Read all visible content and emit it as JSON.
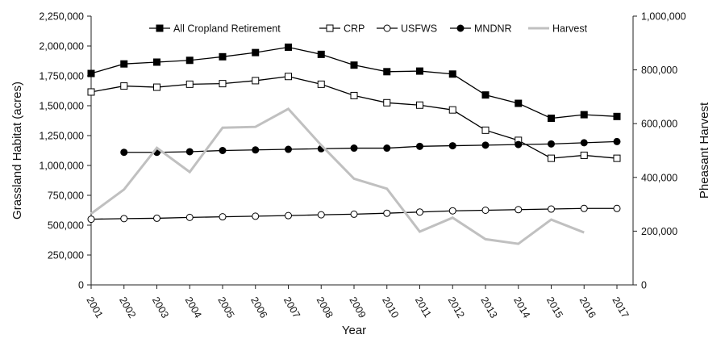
{
  "chart_data": {
    "type": "line",
    "title": "",
    "xlabel": "Year",
    "ylabel": "Grassland Habitat (acres)",
    "y2label": "Pheasant Harvest",
    "x": [
      "2001",
      "2002",
      "2003",
      "2004",
      "2005",
      "2006",
      "2007",
      "2008",
      "2009",
      "2010",
      "2011",
      "2012",
      "2013",
      "2014",
      "2015",
      "2016",
      "2017"
    ],
    "ylim": [
      0,
      2250000
    ],
    "y2lim": [
      0,
      1000000
    ],
    "y_ticks": [
      "0",
      "250,000",
      "500,000",
      "750,000",
      "1,000,000",
      "1,250,000",
      "1,500,000",
      "1,750,000",
      "2,000,000",
      "2,250,000"
    ],
    "y2_ticks": [
      "0",
      "200,000",
      "400,000",
      "600,000",
      "800,000",
      "1,000,000"
    ],
    "grid": false,
    "legend_position": "top",
    "series": [
      {
        "name": "All Cropland Retirement",
        "axis": "left",
        "marker": "filled-square",
        "color": "#000000",
        "values": [
          1770000,
          1850000,
          1865000,
          1880000,
          1910000,
          1945000,
          1990000,
          1930000,
          1840000,
          1785000,
          1790000,
          1765000,
          1590000,
          1520000,
          1395000,
          1425000,
          1410000
        ]
      },
      {
        "name": "CRP",
        "axis": "left",
        "marker": "open-square",
        "color": "#000000",
        "values": [
          1615000,
          1665000,
          1655000,
          1680000,
          1685000,
          1710000,
          1745000,
          1680000,
          1585000,
          1525000,
          1505000,
          1465000,
          1295000,
          1210000,
          1060000,
          1085000,
          1060000
        ]
      },
      {
        "name": "USFWS",
        "axis": "left",
        "marker": "open-circle",
        "color": "#000000",
        "values": [
          550000,
          555000,
          558000,
          565000,
          570000,
          575000,
          580000,
          587000,
          592000,
          600000,
          610000,
          620000,
          625000,
          630000,
          635000,
          640000,
          640000
        ]
      },
      {
        "name": "MNDNR",
        "axis": "left",
        "marker": "filled-circle",
        "color": "#000000",
        "values": [
          null,
          1110000,
          1110000,
          1115000,
          1125000,
          1130000,
          1135000,
          1140000,
          1145000,
          1145000,
          1160000,
          1165000,
          1170000,
          1175000,
          1180000,
          1190000,
          1200000
        ]
      },
      {
        "name": "Harvest",
        "axis": "right",
        "marker": "none",
        "color": "#c0c0c0",
        "values": [
          265000,
          355000,
          510000,
          420000,
          585000,
          588000,
          655000,
          520000,
          395000,
          358000,
          198000,
          250000,
          170000,
          153000,
          243000,
          195000,
          null
        ]
      }
    ]
  }
}
